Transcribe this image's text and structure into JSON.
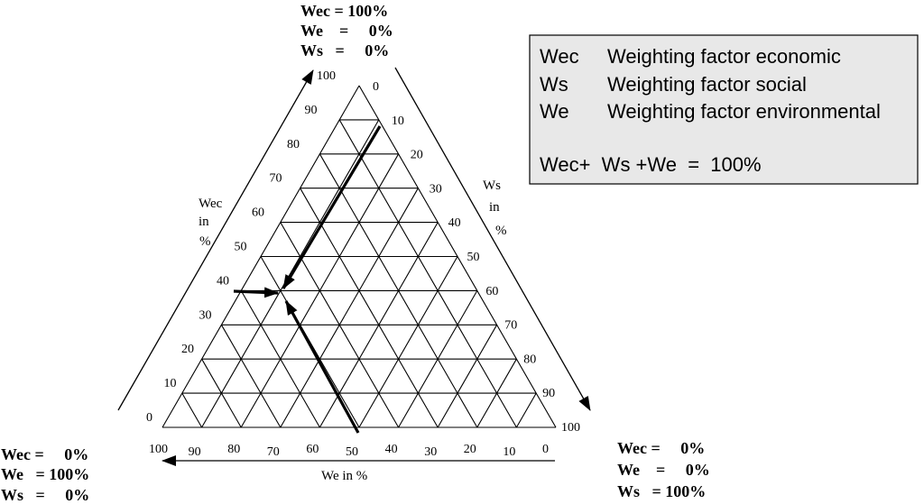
{
  "corners": {
    "top": {
      "wec": "Wec = 100%",
      "we": "We    =     0%",
      "ws": "Ws   =     0%"
    },
    "left": {
      "wec": "Wec =     0%",
      "we": "We   = 100%",
      "ws": "Ws   =     0%"
    },
    "right": {
      "wec": "Wec =     0%",
      "we": "We    =     0%",
      "ws": "Ws   = 100%"
    }
  },
  "axes": {
    "wec": {
      "line1": "Wec",
      "line2": "in",
      "line3": "%",
      "ticks": [
        "100",
        "90",
        "80",
        "70",
        "60",
        "50",
        "40",
        "30",
        "20",
        "10",
        "0"
      ]
    },
    "ws": {
      "line1": "Ws",
      "line2": "in",
      "line3": "%",
      "ticks": [
        "0",
        "10",
        "20",
        "30",
        "40",
        "50",
        "60",
        "70",
        "80",
        "90",
        "100"
      ]
    },
    "we": {
      "label": "We in %",
      "ticks": [
        "100",
        "90",
        "80",
        "70",
        "60",
        "50",
        "40",
        "30",
        "20",
        "10",
        "0"
      ]
    }
  },
  "legend": {
    "rows": [
      {
        "symbol": "Wec",
        "desc": "Weighting factor economic"
      },
      {
        "symbol": "Ws",
        "desc": "Weighting factor social"
      },
      {
        "symbol": "We",
        "desc": "Weighting factor environmental"
      }
    ],
    "equation": "Wec+  Ws +We  =  100%",
    "background": "#e8e8e8"
  },
  "diagram": {
    "divisions": 10,
    "marked_point": {
      "wec_percent": 40,
      "ws_percent": 10,
      "we_percent": 50
    },
    "colors": {
      "stroke": "#000000"
    }
  }
}
